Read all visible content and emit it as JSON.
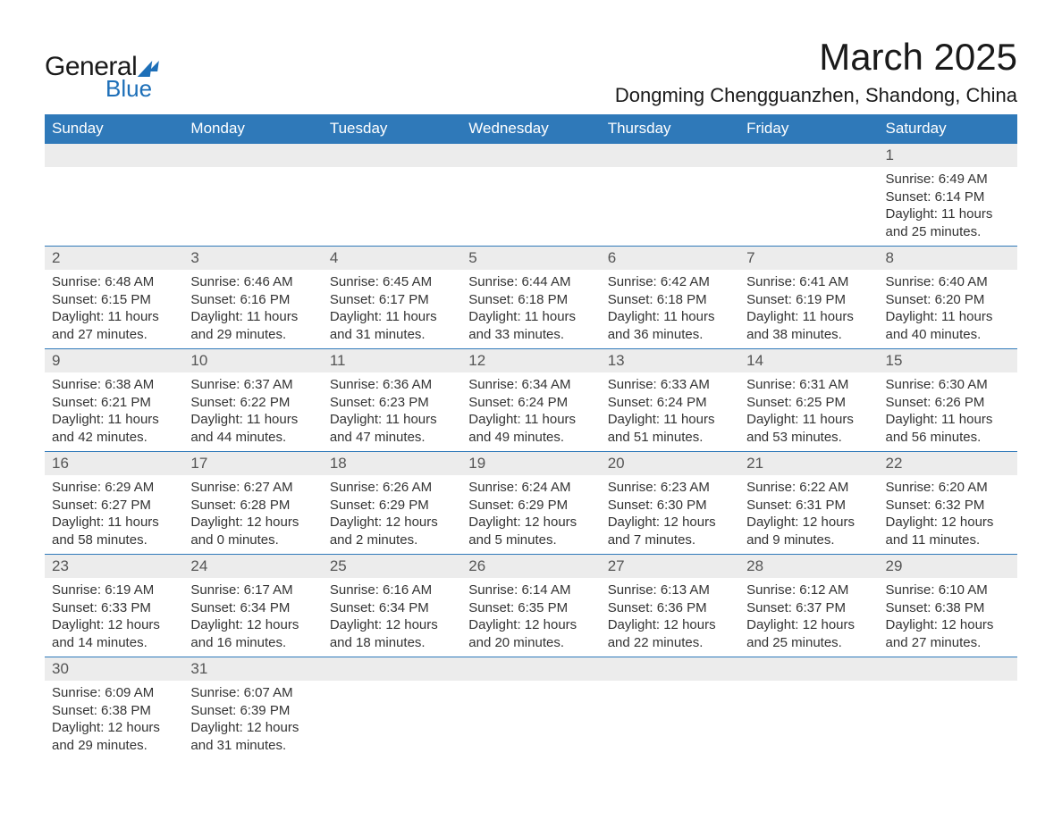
{
  "logo": {
    "text_general": "General",
    "text_blue": "Blue",
    "triangle_color": "#1d6fb8"
  },
  "title": "March 2025",
  "location": "Dongming Chengguanzhen, Shandong, China",
  "colors": {
    "header_bg": "#2f79b9",
    "header_text": "#ffffff",
    "daynum_bg": "#ececec",
    "daynum_text": "#555555",
    "body_text": "#333333",
    "row_divider": "#2f79b9",
    "background": "#ffffff"
  },
  "typography": {
    "month_title_fontsize": 42,
    "location_fontsize": 22,
    "dayhead_fontsize": 17,
    "daynum_fontsize": 17,
    "content_fontsize": 15,
    "font_family": "Arial"
  },
  "day_headers": [
    "Sunday",
    "Monday",
    "Tuesday",
    "Wednesday",
    "Thursday",
    "Friday",
    "Saturday"
  ],
  "weeks": [
    [
      {
        "num": "",
        "sunrise": "",
        "sunset": "",
        "daylight": ""
      },
      {
        "num": "",
        "sunrise": "",
        "sunset": "",
        "daylight": ""
      },
      {
        "num": "",
        "sunrise": "",
        "sunset": "",
        "daylight": ""
      },
      {
        "num": "",
        "sunrise": "",
        "sunset": "",
        "daylight": ""
      },
      {
        "num": "",
        "sunrise": "",
        "sunset": "",
        "daylight": ""
      },
      {
        "num": "",
        "sunrise": "",
        "sunset": "",
        "daylight": ""
      },
      {
        "num": "1",
        "sunrise": "Sunrise: 6:49 AM",
        "sunset": "Sunset: 6:14 PM",
        "daylight": "Daylight: 11 hours and 25 minutes."
      }
    ],
    [
      {
        "num": "2",
        "sunrise": "Sunrise: 6:48 AM",
        "sunset": "Sunset: 6:15 PM",
        "daylight": "Daylight: 11 hours and 27 minutes."
      },
      {
        "num": "3",
        "sunrise": "Sunrise: 6:46 AM",
        "sunset": "Sunset: 6:16 PM",
        "daylight": "Daylight: 11 hours and 29 minutes."
      },
      {
        "num": "4",
        "sunrise": "Sunrise: 6:45 AM",
        "sunset": "Sunset: 6:17 PM",
        "daylight": "Daylight: 11 hours and 31 minutes."
      },
      {
        "num": "5",
        "sunrise": "Sunrise: 6:44 AM",
        "sunset": "Sunset: 6:18 PM",
        "daylight": "Daylight: 11 hours and 33 minutes."
      },
      {
        "num": "6",
        "sunrise": "Sunrise: 6:42 AM",
        "sunset": "Sunset: 6:18 PM",
        "daylight": "Daylight: 11 hours and 36 minutes."
      },
      {
        "num": "7",
        "sunrise": "Sunrise: 6:41 AM",
        "sunset": "Sunset: 6:19 PM",
        "daylight": "Daylight: 11 hours and 38 minutes."
      },
      {
        "num": "8",
        "sunrise": "Sunrise: 6:40 AM",
        "sunset": "Sunset: 6:20 PM",
        "daylight": "Daylight: 11 hours and 40 minutes."
      }
    ],
    [
      {
        "num": "9",
        "sunrise": "Sunrise: 6:38 AM",
        "sunset": "Sunset: 6:21 PM",
        "daylight": "Daylight: 11 hours and 42 minutes."
      },
      {
        "num": "10",
        "sunrise": "Sunrise: 6:37 AM",
        "sunset": "Sunset: 6:22 PM",
        "daylight": "Daylight: 11 hours and 44 minutes."
      },
      {
        "num": "11",
        "sunrise": "Sunrise: 6:36 AM",
        "sunset": "Sunset: 6:23 PM",
        "daylight": "Daylight: 11 hours and 47 minutes."
      },
      {
        "num": "12",
        "sunrise": "Sunrise: 6:34 AM",
        "sunset": "Sunset: 6:24 PM",
        "daylight": "Daylight: 11 hours and 49 minutes."
      },
      {
        "num": "13",
        "sunrise": "Sunrise: 6:33 AM",
        "sunset": "Sunset: 6:24 PM",
        "daylight": "Daylight: 11 hours and 51 minutes."
      },
      {
        "num": "14",
        "sunrise": "Sunrise: 6:31 AM",
        "sunset": "Sunset: 6:25 PM",
        "daylight": "Daylight: 11 hours and 53 minutes."
      },
      {
        "num": "15",
        "sunrise": "Sunrise: 6:30 AM",
        "sunset": "Sunset: 6:26 PM",
        "daylight": "Daylight: 11 hours and 56 minutes."
      }
    ],
    [
      {
        "num": "16",
        "sunrise": "Sunrise: 6:29 AM",
        "sunset": "Sunset: 6:27 PM",
        "daylight": "Daylight: 11 hours and 58 minutes."
      },
      {
        "num": "17",
        "sunrise": "Sunrise: 6:27 AM",
        "sunset": "Sunset: 6:28 PM",
        "daylight": "Daylight: 12 hours and 0 minutes."
      },
      {
        "num": "18",
        "sunrise": "Sunrise: 6:26 AM",
        "sunset": "Sunset: 6:29 PM",
        "daylight": "Daylight: 12 hours and 2 minutes."
      },
      {
        "num": "19",
        "sunrise": "Sunrise: 6:24 AM",
        "sunset": "Sunset: 6:29 PM",
        "daylight": "Daylight: 12 hours and 5 minutes."
      },
      {
        "num": "20",
        "sunrise": "Sunrise: 6:23 AM",
        "sunset": "Sunset: 6:30 PM",
        "daylight": "Daylight: 12 hours and 7 minutes."
      },
      {
        "num": "21",
        "sunrise": "Sunrise: 6:22 AM",
        "sunset": "Sunset: 6:31 PM",
        "daylight": "Daylight: 12 hours and 9 minutes."
      },
      {
        "num": "22",
        "sunrise": "Sunrise: 6:20 AM",
        "sunset": "Sunset: 6:32 PM",
        "daylight": "Daylight: 12 hours and 11 minutes."
      }
    ],
    [
      {
        "num": "23",
        "sunrise": "Sunrise: 6:19 AM",
        "sunset": "Sunset: 6:33 PM",
        "daylight": "Daylight: 12 hours and 14 minutes."
      },
      {
        "num": "24",
        "sunrise": "Sunrise: 6:17 AM",
        "sunset": "Sunset: 6:34 PM",
        "daylight": "Daylight: 12 hours and 16 minutes."
      },
      {
        "num": "25",
        "sunrise": "Sunrise: 6:16 AM",
        "sunset": "Sunset: 6:34 PM",
        "daylight": "Daylight: 12 hours and 18 minutes."
      },
      {
        "num": "26",
        "sunrise": "Sunrise: 6:14 AM",
        "sunset": "Sunset: 6:35 PM",
        "daylight": "Daylight: 12 hours and 20 minutes."
      },
      {
        "num": "27",
        "sunrise": "Sunrise: 6:13 AM",
        "sunset": "Sunset: 6:36 PM",
        "daylight": "Daylight: 12 hours and 22 minutes."
      },
      {
        "num": "28",
        "sunrise": "Sunrise: 6:12 AM",
        "sunset": "Sunset: 6:37 PM",
        "daylight": "Daylight: 12 hours and 25 minutes."
      },
      {
        "num": "29",
        "sunrise": "Sunrise: 6:10 AM",
        "sunset": "Sunset: 6:38 PM",
        "daylight": "Daylight: 12 hours and 27 minutes."
      }
    ],
    [
      {
        "num": "30",
        "sunrise": "Sunrise: 6:09 AM",
        "sunset": "Sunset: 6:38 PM",
        "daylight": "Daylight: 12 hours and 29 minutes."
      },
      {
        "num": "31",
        "sunrise": "Sunrise: 6:07 AM",
        "sunset": "Sunset: 6:39 PM",
        "daylight": "Daylight: 12 hours and 31 minutes."
      },
      {
        "num": "",
        "sunrise": "",
        "sunset": "",
        "daylight": ""
      },
      {
        "num": "",
        "sunrise": "",
        "sunset": "",
        "daylight": ""
      },
      {
        "num": "",
        "sunrise": "",
        "sunset": "",
        "daylight": ""
      },
      {
        "num": "",
        "sunrise": "",
        "sunset": "",
        "daylight": ""
      },
      {
        "num": "",
        "sunrise": "",
        "sunset": "",
        "daylight": ""
      }
    ]
  ]
}
